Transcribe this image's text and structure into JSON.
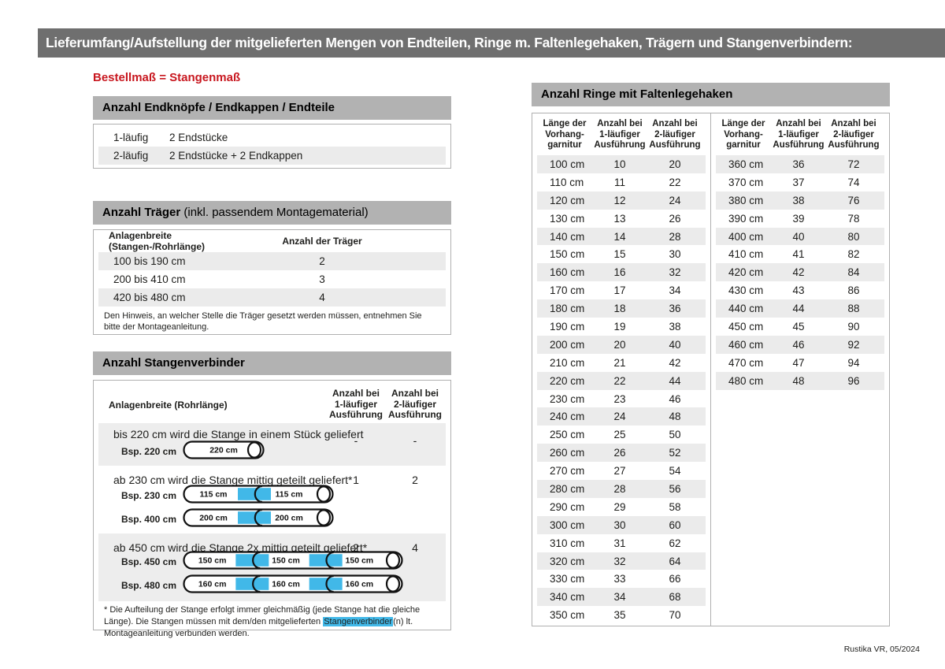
{
  "banner": {
    "title": "Lieferumfang/Aufstellung der mitgelieferten Mengen von Endteilen, Ringe m. Faltenlegehaken, Trägern und Stangenverbindern:"
  },
  "subtitle": "Bestellmaß = Stangenmaß",
  "colors": {
    "banner_bg": "#6f6f6f",
    "section_bar_bg": "#b2b2b2",
    "row_gray": "#ebebeb",
    "blue": "#41b8e8",
    "red": "#c8171f"
  },
  "sections": {
    "endteile": {
      "title": "Anzahl Endknöpfe / Endkappen / Endteile",
      "rows": [
        {
          "label": "1-läufig",
          "value": "2 Endstücke"
        },
        {
          "label": "2-läufig",
          "value": "2 Endstücke + 2 Endkappen"
        }
      ]
    },
    "traeger": {
      "title_bold": "Anzahl Träger",
      "title_rest": " (inkl. passendem Montagematerial)",
      "col1": "Anlagenbreite (Stangen-/Rohrlänge)",
      "col2": "Anzahl der Träger",
      "rows": [
        {
          "range": "100 bis 190 cm",
          "count": "2"
        },
        {
          "range": "200 bis 410 cm",
          "count": "3"
        },
        {
          "range": "420 bis 480 cm",
          "count": "4"
        }
      ],
      "note": "Den Hinweis, an welcher Stelle die Träger gesetzt werden müssen, entnehmen Sie bitte der Montageanleitung."
    },
    "verbinder": {
      "title": "Anzahl Stangenverbinder",
      "col1": "Anlagenbreite (Rohrlänge)",
      "col2": [
        "Anzahl bei",
        "1-läufiger",
        "Ausführung"
      ],
      "col3": [
        "Anzahl bei",
        "2-läufiger",
        "Ausführung"
      ],
      "blocks": [
        {
          "desc": "bis 220 cm wird die Stange in einem Stück geliefert",
          "count1": "-",
          "count2": "-",
          "rods": [
            {
              "label": "Bsp. 220 cm",
              "segments": [
                "220 cm"
              ]
            }
          ]
        },
        {
          "desc": "ab 230 cm wird die Stange mittig geteilt geliefert*",
          "count1": "1",
          "count2": "2",
          "rods": [
            {
              "label": "Bsp. 230 cm",
              "segments": [
                "115 cm",
                "115 cm"
              ]
            },
            {
              "label": "Bsp. 400 cm",
              "segments": [
                "200 cm",
                "200 cm"
              ]
            }
          ]
        },
        {
          "desc": "ab 450 cm wird die Stange 2x mittig geteilt geliefert*",
          "count1": "2",
          "count2": "4",
          "rods": [
            {
              "label": "Bsp. 450 cm",
              "segments": [
                "150 cm",
                "150 cm",
                "150 cm"
              ]
            },
            {
              "label": "Bsp. 480 cm",
              "segments": [
                "160 cm",
                "160 cm",
                "160 cm"
              ]
            }
          ]
        }
      ],
      "footnote_pre": "* Die Aufteilung der Stange erfolgt immer gleichmäßig (jede Stange hat die gleiche Länge). Die Stangen müssen mit dem/den mitgelieferten ",
      "footnote_highlight": "Stangenverbinder",
      "footnote_post": "(n) lt. Montageanleitung verbunden werden."
    },
    "ringe": {
      "title": "Anzahl Ringe mit Faltenlegehaken",
      "headers": [
        [
          "Länge der",
          "Vorhang-",
          "garnitur"
        ],
        [
          "Anzahl bei",
          "1-läufiger",
          "Ausführung"
        ],
        [
          "Anzahl bei",
          "2-läufiger",
          "Ausführung"
        ]
      ],
      "table_left": [
        [
          "100 cm",
          "10",
          "20"
        ],
        [
          "110 cm",
          "11",
          "22"
        ],
        [
          "120 cm",
          "12",
          "24"
        ],
        [
          "130 cm",
          "13",
          "26"
        ],
        [
          "140 cm",
          "14",
          "28"
        ],
        [
          "150 cm",
          "15",
          "30"
        ],
        [
          "160 cm",
          "16",
          "32"
        ],
        [
          "170 cm",
          "17",
          "34"
        ],
        [
          "180 cm",
          "18",
          "36"
        ],
        [
          "190 cm",
          "19",
          "38"
        ],
        [
          "200 cm",
          "20",
          "40"
        ],
        [
          "210 cm",
          "21",
          "42"
        ],
        [
          "220 cm",
          "22",
          "44"
        ],
        [
          "230 cm",
          "23",
          "46"
        ],
        [
          "240 cm",
          "24",
          "48"
        ],
        [
          "250 cm",
          "25",
          "50"
        ],
        [
          "260 cm",
          "26",
          "52"
        ],
        [
          "270 cm",
          "27",
          "54"
        ],
        [
          "280 cm",
          "28",
          "56"
        ],
        [
          "290 cm",
          "29",
          "58"
        ],
        [
          "300 cm",
          "30",
          "60"
        ],
        [
          "310 cm",
          "31",
          "62"
        ],
        [
          "320 cm",
          "32",
          "64"
        ],
        [
          "330 cm",
          "33",
          "66"
        ],
        [
          "340 cm",
          "34",
          "68"
        ],
        [
          "350 cm",
          "35",
          "70"
        ]
      ],
      "table_right": [
        [
          "360 cm",
          "36",
          "72"
        ],
        [
          "370 cm",
          "37",
          "74"
        ],
        [
          "380 cm",
          "38",
          "76"
        ],
        [
          "390 cm",
          "39",
          "78"
        ],
        [
          "400 cm",
          "40",
          "80"
        ],
        [
          "410 cm",
          "41",
          "82"
        ],
        [
          "420 cm",
          "42",
          "84"
        ],
        [
          "430 cm",
          "43",
          "86"
        ],
        [
          "440 cm",
          "44",
          "88"
        ],
        [
          "450 cm",
          "45",
          "90"
        ],
        [
          "460 cm",
          "46",
          "92"
        ],
        [
          "470 cm",
          "47",
          "94"
        ],
        [
          "480 cm",
          "48",
          "96"
        ]
      ]
    }
  },
  "footer": "Rustika VR, 05/2024"
}
